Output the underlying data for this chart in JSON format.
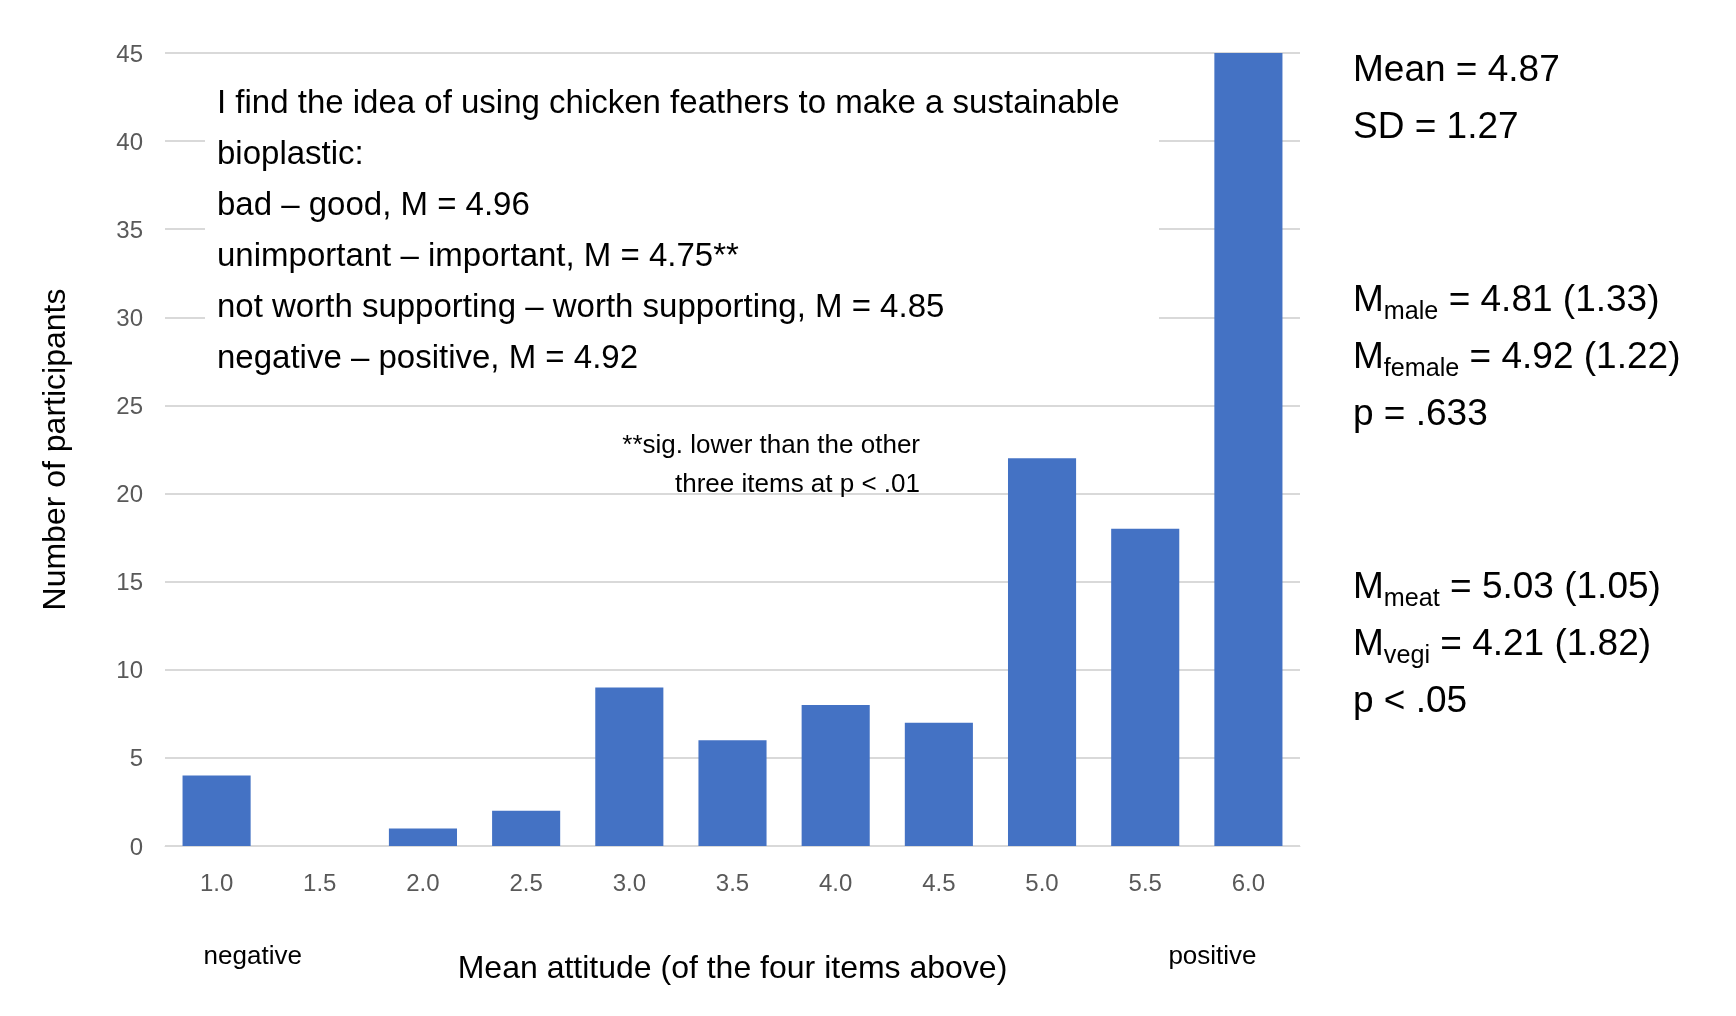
{
  "chart_data": {
    "type": "bar",
    "xlabel": "Mean attitude (of the four items above)",
    "ylabel": "Number of participants",
    "categories": [
      "1.0",
      "1.5",
      "2.0",
      "2.5",
      "3.0",
      "3.5",
      "4.0",
      "4.5",
      "5.0",
      "5.5",
      "6.0"
    ],
    "values": [
      4,
      0,
      1,
      2,
      9,
      6,
      8,
      7,
      22,
      18,
      45
    ],
    "color": "#4472c4",
    "ylim": [
      0,
      45
    ],
    "yticks": [
      0,
      5,
      10,
      15,
      20,
      25,
      30,
      35,
      40,
      45
    ],
    "grid": "y",
    "annotations": [
      "I find the idea of using chicken feathers to make a sustainable bioplastic:",
      "bad – good, M = 4.96",
      "unimportant – important, M = 4.75**",
      "not worth supporting – worth supporting, M = 4.85",
      "negative – positive, M = 4.92",
      "**sig. lower than the other three items at p < .01",
      "Mean = 4.87",
      "SD = 1.27",
      "M$_{male}$ = 4.81 (1.33)",
      "M$_{female}$ = 4.92 (1.22)",
      "p = .633",
      "M$_{meat}$ = 5.03 (1.05)",
      "M$_{vegi}$ = 4.21 (1.82)",
      "p < .05",
      "negative",
      "positive"
    ]
  }
}
